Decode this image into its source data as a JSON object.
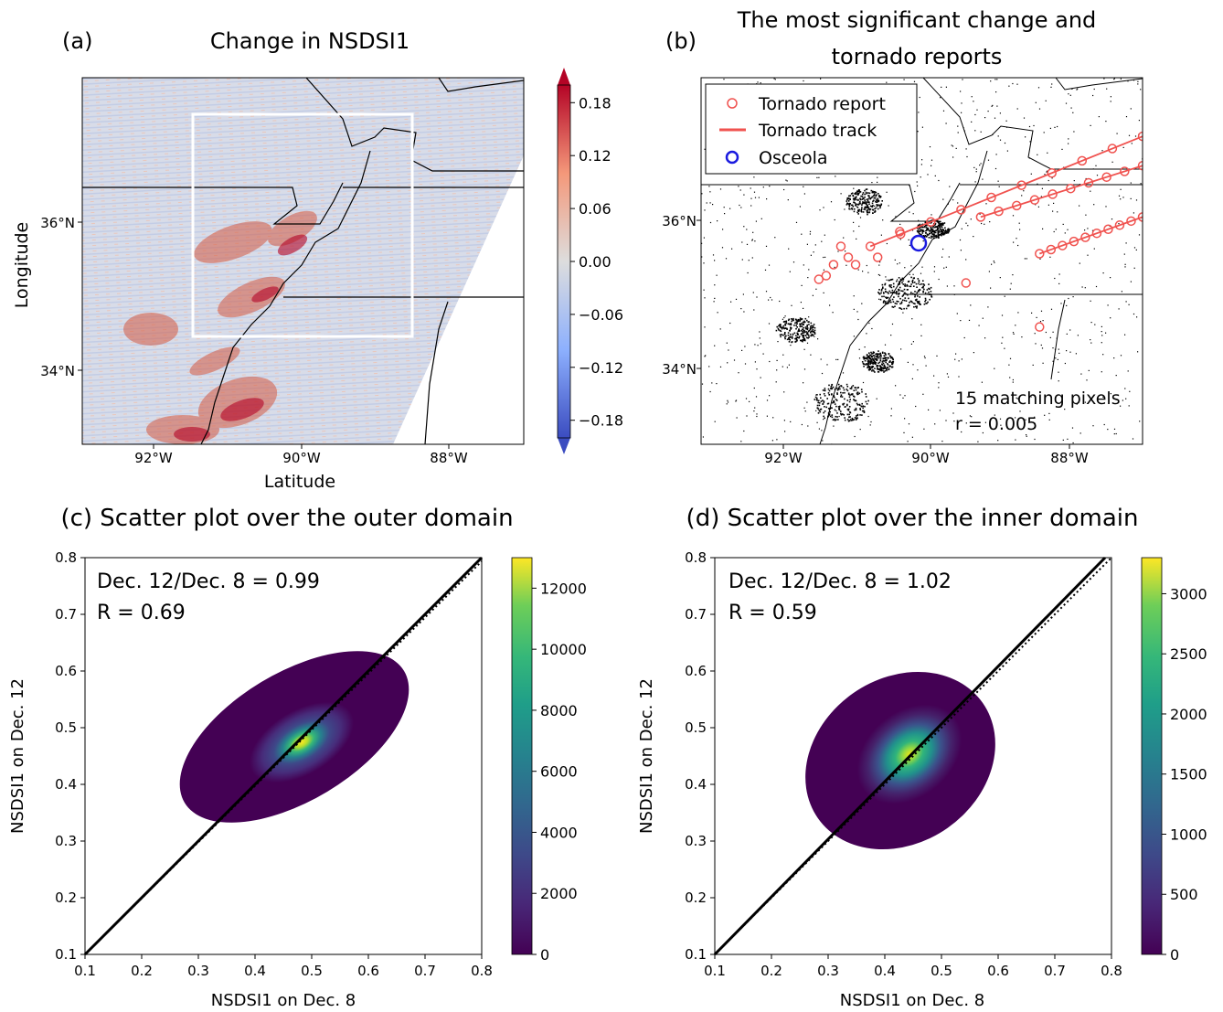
{
  "panels": {
    "a": {
      "tag": "(a)",
      "title": "Change in NSDSI1",
      "xlabel": "Latitude",
      "ylabel": "Longitude",
      "xticks": [
        "92°W",
        "90°W",
        "88°W"
      ],
      "yticks": [
        "36°N",
        "34°N"
      ],
      "colorbar_ticks": [
        "0.18",
        "0.12",
        "0.06",
        "0.00",
        "−0.06",
        "−0.12",
        "−0.18"
      ]
    },
    "b": {
      "tag": "(b)",
      "title_line1": "The most significant change and",
      "title_line2": "tornado reports",
      "xticks": [
        "92°W",
        "90°W",
        "88°W"
      ],
      "yticks": [
        "36°N",
        "34°N"
      ],
      "legend": [
        "Tornado report",
        "Tornado track",
        "Osceola"
      ],
      "annotation_line1": "15 matching pixels",
      "annotation_line2": "r = 0.005"
    },
    "c": {
      "title": "(c) Scatter plot over the outer domain",
      "stat_line1": "Dec. 12/Dec. 8 = 0.99",
      "stat_line2": "R = 0.69",
      "xlabel": "NSDSI1 on Dec. 8",
      "ylabel": "NSDSI1 on Dec. 12",
      "ticks": [
        "0.1",
        "0.2",
        "0.3",
        "0.4",
        "0.5",
        "0.6",
        "0.7",
        "0.8"
      ],
      "colorbar_ticks": [
        "0",
        "2000",
        "4000",
        "6000",
        "8000",
        "10000",
        "12000"
      ]
    },
    "d": {
      "title": "(d) Scatter plot over the inner domain",
      "stat_line1": "Dec. 12/Dec. 8 = 1.02",
      "stat_line2": "R = 0.59",
      "xlabel": "NSDSI1 on Dec. 8",
      "ylabel": "NSDSI1 on Dec. 12",
      "ticks": [
        "0.1",
        "0.2",
        "0.3",
        "0.4",
        "0.5",
        "0.6",
        "0.7",
        "0.8"
      ],
      "colorbar_ticks": [
        "0",
        "500",
        "1000",
        "1500",
        "2000",
        "2500",
        "3000"
      ]
    }
  },
  "colors": {
    "tornado": "#f0524f",
    "osceola": "#1a1adf",
    "diverging_neg": "#3b4cc0",
    "diverging_pos": "#b40426"
  },
  "chart_data": [
    {
      "type": "heatmap",
      "panel": "a",
      "title": "Change in NSDSI1",
      "xlabel": "Latitude",
      "ylabel": "Longitude",
      "xlim": [
        -93,
        -87
      ],
      "ylim": [
        33,
        38
      ],
      "colorbar_range": [
        -0.2,
        0.2
      ],
      "colorbar_ticks": [
        0.18,
        0.12,
        0.06,
        0.0,
        -0.06,
        -0.12,
        -0.18
      ],
      "inner_domain_box": {
        "lon": [
          -91.5,
          -88.5
        ],
        "lat": [
          34.5,
          37.5
        ]
      }
    },
    {
      "type": "scatter",
      "panel": "b",
      "title": "The most significant change and tornado reports",
      "xlim": [
        -93,
        -87
      ],
      "ylim": [
        33,
        38
      ],
      "series": [
        {
          "name": "Tornado report",
          "marker": "open circle"
        },
        {
          "name": "Tornado track",
          "marker": "line"
        },
        {
          "name": "Osceola",
          "marker": "open circle",
          "x": [
            -90.1
          ],
          "y": [
            35.7
          ]
        }
      ],
      "tornado_tracks": [
        {
          "x": [
            -90.7,
            -87.0
          ],
          "y": [
            35.7,
            37.2
          ]
        },
        {
          "x": [
            -89.2,
            -87.0
          ],
          "y": [
            36.1,
            36.8
          ]
        },
        {
          "x": [
            -88.4,
            -87.0
          ],
          "y": [
            35.6,
            36.1
          ]
        }
      ],
      "annotation": {
        "matching_pixels": 15,
        "r": 0.005
      }
    },
    {
      "type": "heatmap",
      "panel": "c",
      "title": "(c) Scatter plot over the outer domain",
      "xlabel": "NSDSI1 on Dec. 8",
      "ylabel": "NSDSI1 on Dec. 12",
      "xlim": [
        0.1,
        0.8
      ],
      "ylim": [
        0.1,
        0.8
      ],
      "ratio": 0.99,
      "R": 0.69,
      "density_center": [
        0.48,
        0.47
      ],
      "density_max": 13000,
      "colorbar_range": [
        0,
        13000
      ],
      "colorbar_ticks": [
        0,
        2000,
        4000,
        6000,
        8000,
        10000,
        12000
      ]
    },
    {
      "type": "heatmap",
      "panel": "d",
      "title": "(d) Scatter plot over the inner domain",
      "xlabel": "NSDSI1 on Dec. 8",
      "ylabel": "NSDSI1 on Dec. 12",
      "xlim": [
        0.1,
        0.8
      ],
      "ylim": [
        0.1,
        0.8
      ],
      "ratio": 1.02,
      "R": 0.59,
      "density_center": [
        0.46,
        0.47
      ],
      "density_max": 3300,
      "colorbar_range": [
        0,
        3300
      ],
      "colorbar_ticks": [
        0,
        500,
        1000,
        1500,
        2000,
        2500,
        3000
      ]
    }
  ]
}
